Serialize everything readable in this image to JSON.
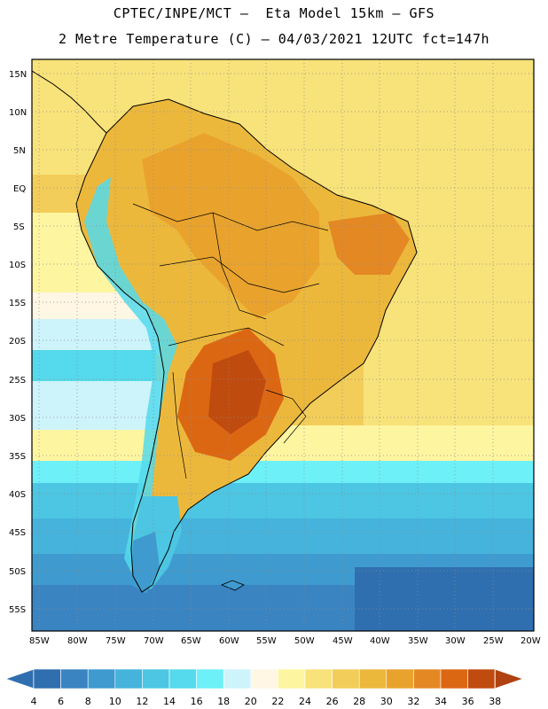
{
  "header": {
    "line1": "CPTEC/INPE/MCT –  Eta Model 15km – GFS",
    "line2": "2 Metre Temperature (C) – 04/03/2021 12UTC fct=147h"
  },
  "map": {
    "lat_labels": [
      "15N",
      "10N",
      "5N",
      "EQ",
      "5S",
      "10S",
      "15S",
      "20S",
      "25S",
      "30S",
      "35S",
      "40S",
      "45S",
      "50S",
      "55S"
    ],
    "lon_labels": [
      "85W",
      "80W",
      "75W",
      "70W",
      "65W",
      "60W",
      "55W",
      "50W",
      "45W",
      "40W",
      "35W",
      "30W",
      "25W",
      "20W"
    ]
  },
  "colorbar": {
    "levels": [
      "4",
      "6",
      "8",
      "10",
      "12",
      "14",
      "16",
      "18",
      "20",
      "22",
      "24",
      "26",
      "28",
      "30",
      "32",
      "34",
      "36",
      "38"
    ],
    "colors": [
      "#2f6fb0",
      "#3a84c2",
      "#3f9bcf",
      "#45b3dc",
      "#4cc6e3",
      "#55d9ec",
      "#6ef0f8",
      "#cdf4fa",
      "#fff6e4",
      "#fdf5a0",
      "#f8e27a",
      "#f3cd59",
      "#ecb83c",
      "#e9a32d",
      "#e48824",
      "#dc6713",
      "#c04b0e",
      "#b04110"
    ]
  },
  "palette": {
    "ocean_warm": "#f7d978",
    "ocean_hot": "#f1c85a",
    "land_hot": "#e9a32d",
    "land_very_hot": "#cf6a1c",
    "cold_south": "#3a84c2",
    "outline": "#000000"
  }
}
